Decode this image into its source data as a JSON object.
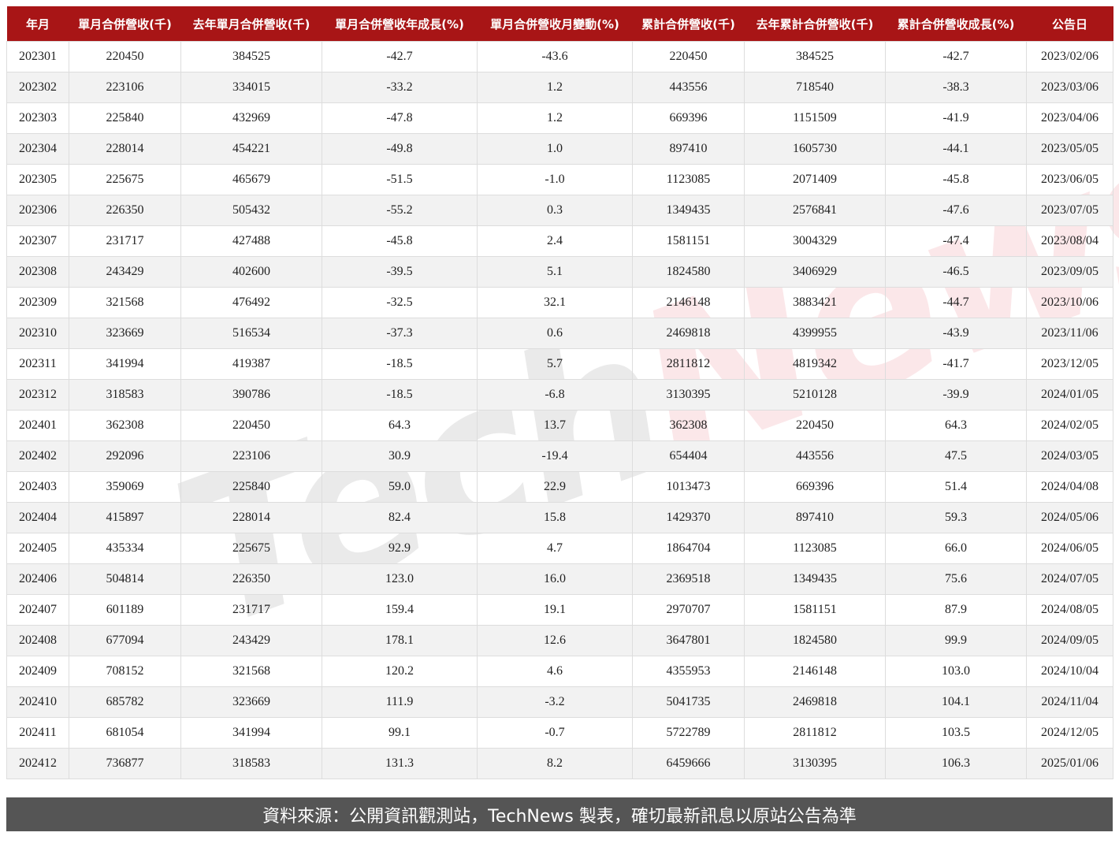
{
  "watermark": "TechNews",
  "chart_data": {
    "type": "table",
    "columns": [
      "年月",
      "單月合併營收(千)",
      "去年單月合併營收(千)",
      "單月合併營收年成長(%)",
      "單月合併營收月變動(%)",
      "累計合併營收(千)",
      "去年累計合併營收(千)",
      "累計合併營收成長(%)",
      "公告日"
    ],
    "rows": [
      [
        "202301",
        "220450",
        "384525",
        "-42.7",
        "-43.6",
        "220450",
        "384525",
        "-42.7",
        "2023/02/06"
      ],
      [
        "202302",
        "223106",
        "334015",
        "-33.2",
        "1.2",
        "443556",
        "718540",
        "-38.3",
        "2023/03/06"
      ],
      [
        "202303",
        "225840",
        "432969",
        "-47.8",
        "1.2",
        "669396",
        "1151509",
        "-41.9",
        "2023/04/06"
      ],
      [
        "202304",
        "228014",
        "454221",
        "-49.8",
        "1.0",
        "897410",
        "1605730",
        "-44.1",
        "2023/05/05"
      ],
      [
        "202305",
        "225675",
        "465679",
        "-51.5",
        "-1.0",
        "1123085",
        "2071409",
        "-45.8",
        "2023/06/05"
      ],
      [
        "202306",
        "226350",
        "505432",
        "-55.2",
        "0.3",
        "1349435",
        "2576841",
        "-47.6",
        "2023/07/05"
      ],
      [
        "202307",
        "231717",
        "427488",
        "-45.8",
        "2.4",
        "1581151",
        "3004329",
        "-47.4",
        "2023/08/04"
      ],
      [
        "202308",
        "243429",
        "402600",
        "-39.5",
        "5.1",
        "1824580",
        "3406929",
        "-46.5",
        "2023/09/05"
      ],
      [
        "202309",
        "321568",
        "476492",
        "-32.5",
        "32.1",
        "2146148",
        "3883421",
        "-44.7",
        "2023/10/06"
      ],
      [
        "202310",
        "323669",
        "516534",
        "-37.3",
        "0.6",
        "2469818",
        "4399955",
        "-43.9",
        "2023/11/06"
      ],
      [
        "202311",
        "341994",
        "419387",
        "-18.5",
        "5.7",
        "2811812",
        "4819342",
        "-41.7",
        "2023/12/05"
      ],
      [
        "202312",
        "318583",
        "390786",
        "-18.5",
        "-6.8",
        "3130395",
        "5210128",
        "-39.9",
        "2024/01/05"
      ],
      [
        "202401",
        "362308",
        "220450",
        "64.3",
        "13.7",
        "362308",
        "220450",
        "64.3",
        "2024/02/05"
      ],
      [
        "202402",
        "292096",
        "223106",
        "30.9",
        "-19.4",
        "654404",
        "443556",
        "47.5",
        "2024/03/05"
      ],
      [
        "202403",
        "359069",
        "225840",
        "59.0",
        "22.9",
        "1013473",
        "669396",
        "51.4",
        "2024/04/08"
      ],
      [
        "202404",
        "415897",
        "228014",
        "82.4",
        "15.8",
        "1429370",
        "897410",
        "59.3",
        "2024/05/06"
      ],
      [
        "202405",
        "435334",
        "225675",
        "92.9",
        "4.7",
        "1864704",
        "1123085",
        "66.0",
        "2024/06/05"
      ],
      [
        "202406",
        "504814",
        "226350",
        "123.0",
        "16.0",
        "2369518",
        "1349435",
        "75.6",
        "2024/07/05"
      ],
      [
        "202407",
        "601189",
        "231717",
        "159.4",
        "19.1",
        "2970707",
        "1581151",
        "87.9",
        "2024/08/05"
      ],
      [
        "202408",
        "677094",
        "243429",
        "178.1",
        "12.6",
        "3647801",
        "1824580",
        "99.9",
        "2024/09/05"
      ],
      [
        "202409",
        "708152",
        "321568",
        "120.2",
        "4.6",
        "4355953",
        "2146148",
        "103.0",
        "2024/10/04"
      ],
      [
        "202410",
        "685782",
        "323669",
        "111.9",
        "-3.2",
        "5041735",
        "2469818",
        "104.1",
        "2024/11/04"
      ],
      [
        "202411",
        "681054",
        "341994",
        "99.1",
        "-0.7",
        "5722789",
        "2811812",
        "103.5",
        "2024/12/05"
      ],
      [
        "202412",
        "736877",
        "318583",
        "131.3",
        "8.2",
        "6459666",
        "3130395",
        "106.3",
        "2025/01/06"
      ]
    ],
    "colors": {
      "header_bg": "#a81516",
      "footer_bg": "#555555",
      "alt_row": "#f2f2f2"
    }
  },
  "footer": "資料來源：公開資訊觀測站，TechNews 製表，確切最新訊息以原站公告為準"
}
